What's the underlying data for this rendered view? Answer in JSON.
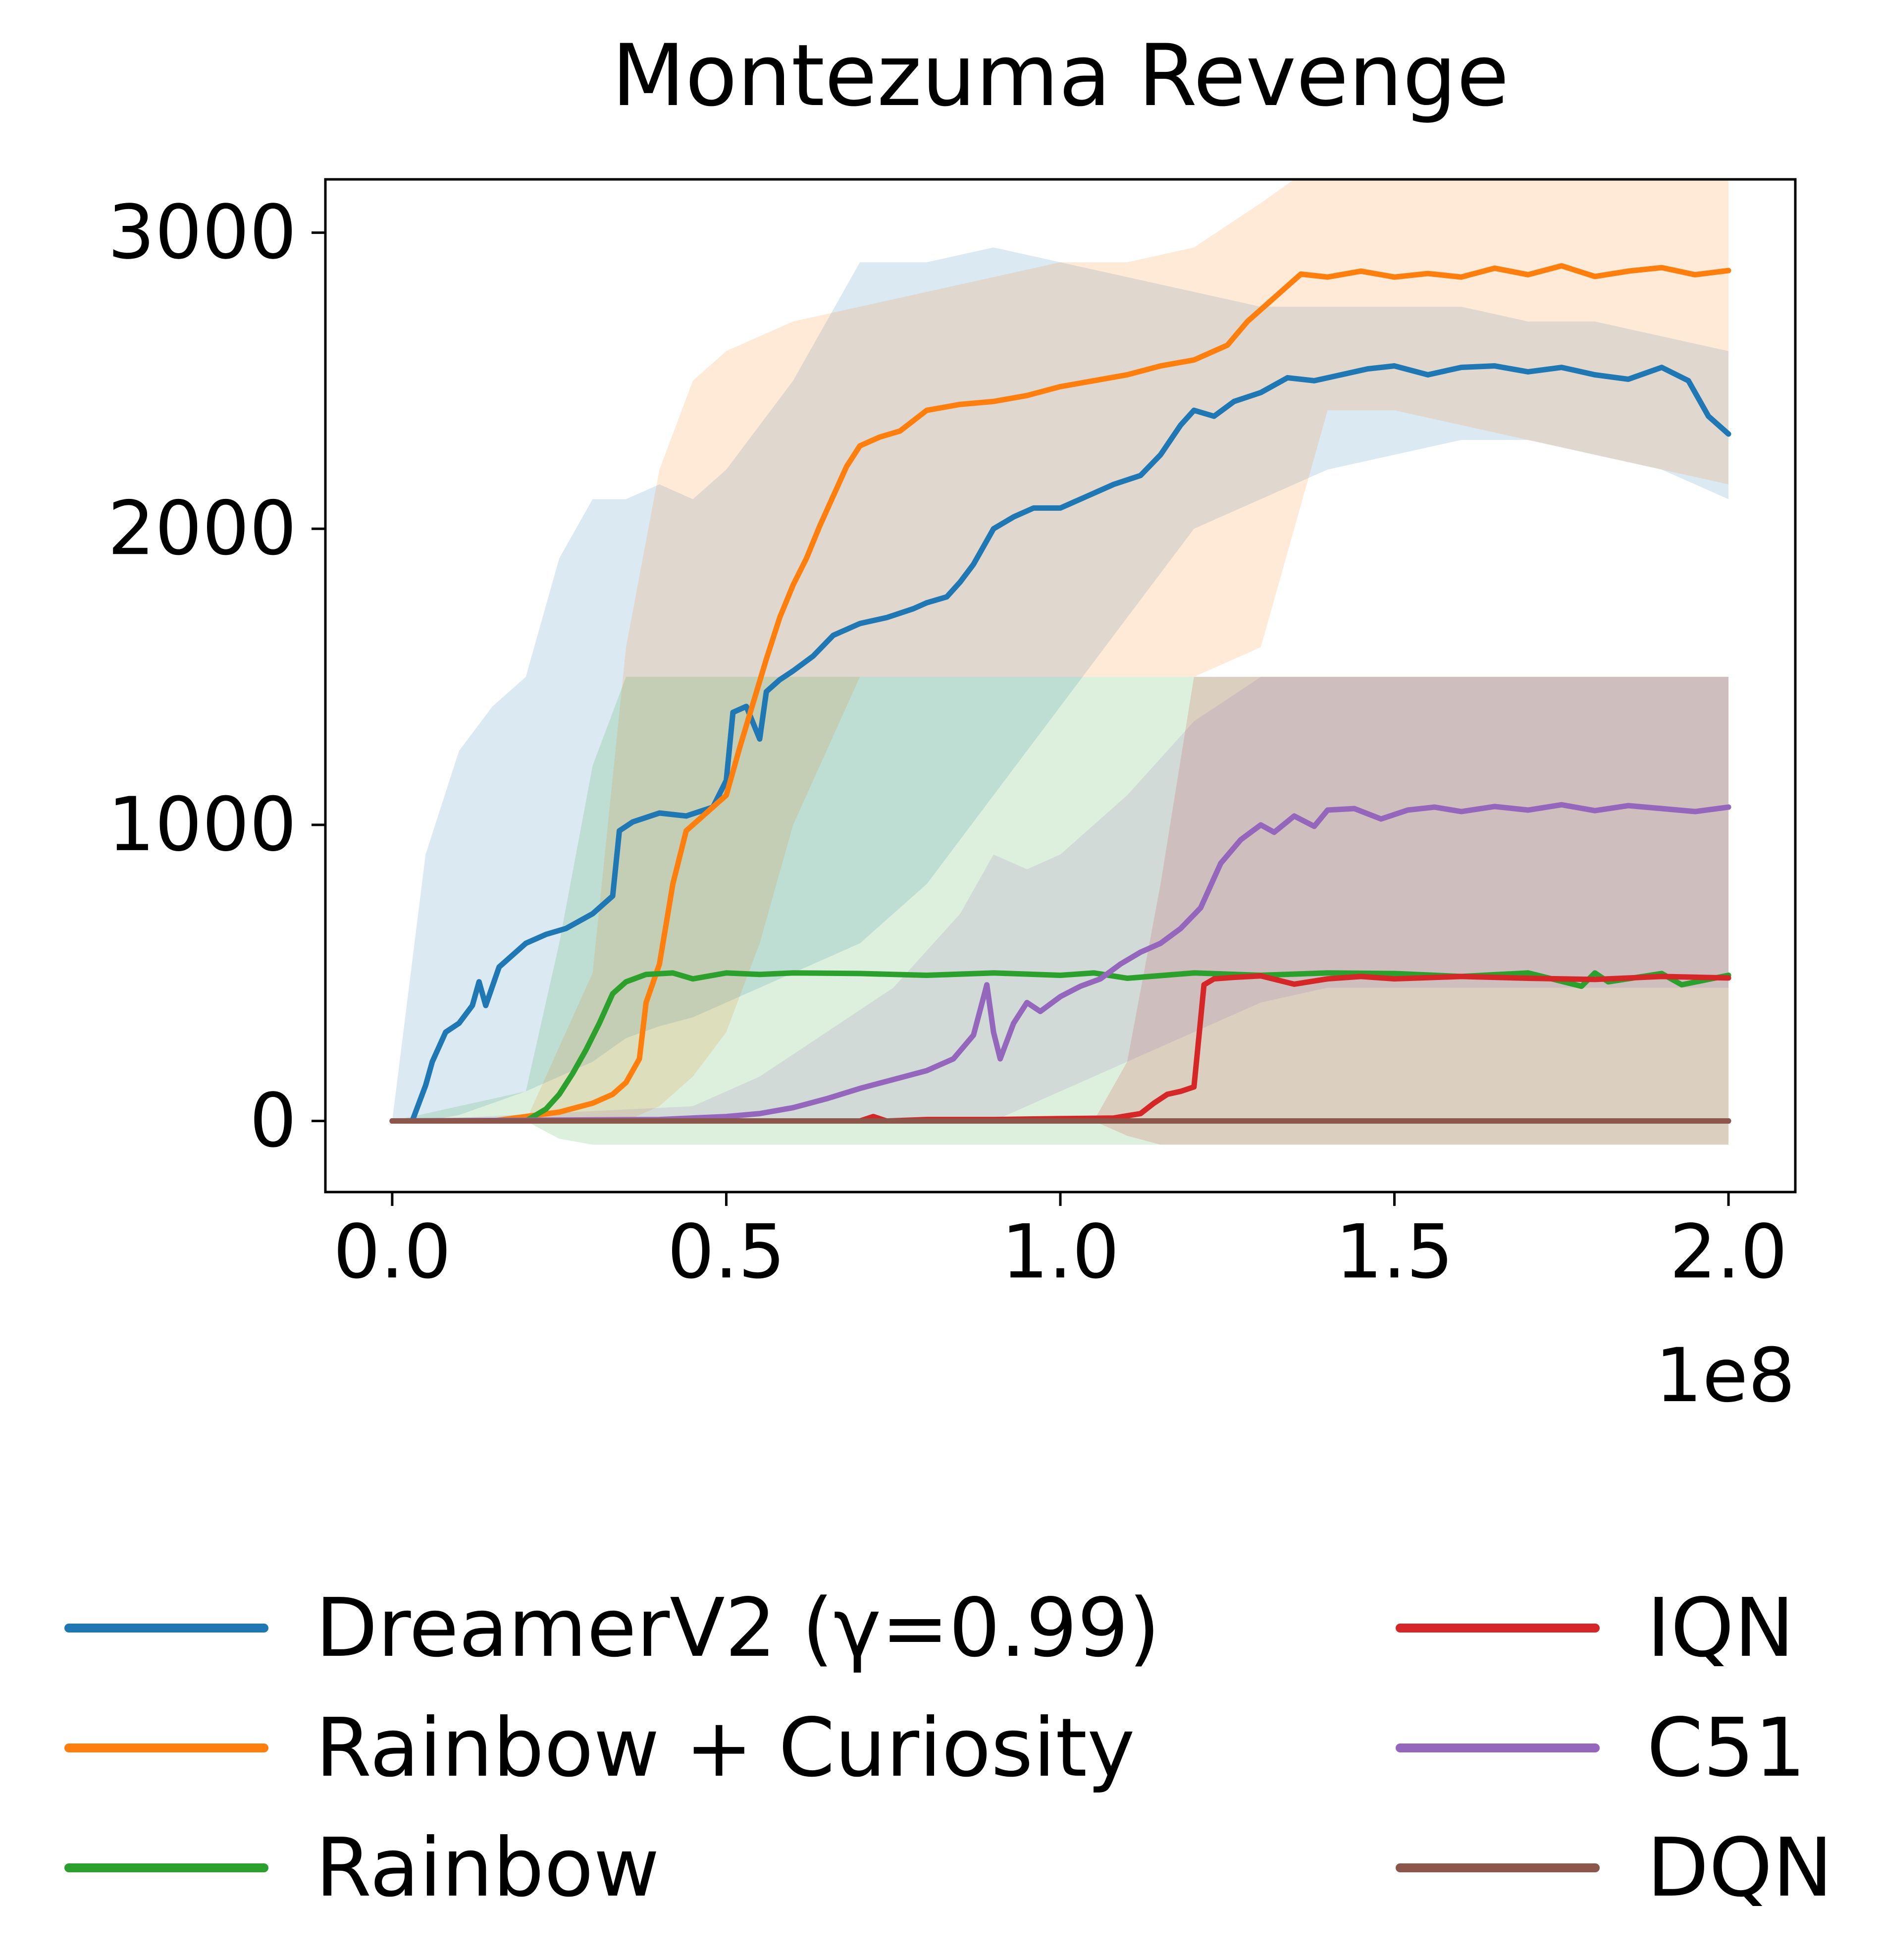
{
  "chart_data": {
    "type": "line",
    "title": "Montezuma Revenge",
    "xlabel": "",
    "ylabel": "",
    "x_offset_label": "1e8",
    "xlim": [
      -0.1,
      2.1
    ],
    "ylim": [
      -240,
      3180
    ],
    "grid": false,
    "legend_position": "below plot, two columns, no frame",
    "xticks": {
      "values": [
        0.0,
        0.5,
        1.0,
        1.5,
        2.0
      ],
      "labels": [
        "0.0",
        "0.5",
        "1.0",
        "1.5",
        "2.0"
      ]
    },
    "yticks": {
      "values": [
        0,
        1000,
        2000,
        3000
      ],
      "labels": [
        "0",
        "1000",
        "2000",
        "3000"
      ]
    },
    "series": [
      {
        "id": "dreamerv2",
        "name": "DreamerV2 (γ=0.99)",
        "color": "#1f77b4",
        "x": [
          0,
          0.03,
          0.05,
          0.06,
          0.08,
          0.1,
          0.12,
          0.13,
          0.14,
          0.16,
          0.18,
          0.2,
          0.23,
          0.26,
          0.3,
          0.33,
          0.34,
          0.36,
          0.4,
          0.44,
          0.48,
          0.5,
          0.51,
          0.53,
          0.55,
          0.56,
          0.58,
          0.6,
          0.63,
          0.66,
          0.7,
          0.74,
          0.78,
          0.8,
          0.83,
          0.85,
          0.87,
          0.9,
          0.93,
          0.96,
          1.0,
          1.04,
          1.08,
          1.12,
          1.15,
          1.18,
          1.2,
          1.23,
          1.26,
          1.3,
          1.34,
          1.38,
          1.42,
          1.46,
          1.5,
          1.55,
          1.6,
          1.65,
          1.7,
          1.75,
          1.8,
          1.85,
          1.9,
          1.94,
          1.97,
          2.0
        ],
        "y": [
          0,
          0,
          120,
          200,
          300,
          330,
          390,
          470,
          390,
          520,
          560,
          600,
          630,
          650,
          700,
          760,
          980,
          1010,
          1040,
          1030,
          1060,
          1150,
          1380,
          1400,
          1290,
          1450,
          1490,
          1520,
          1570,
          1640,
          1680,
          1700,
          1730,
          1750,
          1770,
          1820,
          1880,
          2000,
          2040,
          2070,
          2070,
          2110,
          2150,
          2180,
          2250,
          2350,
          2400,
          2380,
          2430,
          2460,
          2510,
          2500,
          2520,
          2540,
          2550,
          2520,
          2545,
          2550,
          2530,
          2545,
          2520,
          2505,
          2545,
          2500,
          2380,
          2320
        ],
        "band": {
          "x": [
            0,
            0.05,
            0.1,
            0.15,
            0.2,
            0.25,
            0.3,
            0.35,
            0.4,
            0.45,
            0.5,
            0.6,
            0.7,
            0.8,
            0.9,
            1.0,
            1.1,
            1.2,
            1.3,
            1.4,
            1.5,
            1.6,
            1.7,
            1.8,
            1.9,
            2.0
          ],
          "lo": [
            0,
            0,
            20,
            60,
            100,
            150,
            200,
            280,
            320,
            350,
            400,
            500,
            600,
            800,
            1100,
            1400,
            1700,
            2000,
            2100,
            2200,
            2250,
            2300,
            2300,
            2250,
            2200,
            2100
          ],
          "hi": [
            0,
            900,
            1250,
            1400,
            1500,
            1900,
            2100,
            2100,
            2150,
            2100,
            2200,
            2500,
            2900,
            2900,
            2950,
            2900,
            2850,
            2800,
            2750,
            2750,
            2750,
            2750,
            2700,
            2700,
            2650,
            2600
          ]
        }
      },
      {
        "id": "rainbow-curiosity",
        "name": "Rainbow + Curiosity",
        "color": "#ff7f0e",
        "x": [
          0,
          0.15,
          0.2,
          0.25,
          0.3,
          0.33,
          0.35,
          0.37,
          0.38,
          0.4,
          0.42,
          0.44,
          0.46,
          0.48,
          0.5,
          0.52,
          0.54,
          0.56,
          0.58,
          0.6,
          0.62,
          0.64,
          0.66,
          0.68,
          0.7,
          0.73,
          0.76,
          0.8,
          0.85,
          0.9,
          0.95,
          1.0,
          1.05,
          1.1,
          1.15,
          1.2,
          1.25,
          1.28,
          1.31,
          1.34,
          1.36,
          1.4,
          1.45,
          1.5,
          1.55,
          1.6,
          1.65,
          1.7,
          1.75,
          1.8,
          1.85,
          1.9,
          1.95,
          2.0
        ],
        "y": [
          0,
          0,
          15,
          30,
          60,
          90,
          130,
          210,
          400,
          530,
          800,
          980,
          1020,
          1060,
          1100,
          1260,
          1410,
          1560,
          1700,
          1810,
          1900,
          2010,
          2110,
          2210,
          2280,
          2310,
          2330,
          2400,
          2420,
          2430,
          2450,
          2480,
          2500,
          2520,
          2550,
          2570,
          2620,
          2700,
          2760,
          2820,
          2860,
          2850,
          2870,
          2850,
          2862,
          2850,
          2880,
          2858,
          2888,
          2852,
          2870,
          2882,
          2858,
          2872
        ],
        "band": {
          "x": [
            0,
            0.2,
            0.3,
            0.35,
            0.4,
            0.45,
            0.5,
            0.55,
            0.6,
            0.7,
            0.8,
            0.9,
            1.0,
            1.1,
            1.2,
            1.3,
            1.35,
            1.4,
            1.5,
            1.6,
            1.7,
            1.8,
            1.9,
            2.0
          ],
          "lo": [
            0,
            0,
            0,
            0,
            50,
            150,
            300,
            600,
            1000,
            1500,
            1500,
            1500,
            1500,
            1500,
            1500,
            1600,
            2000,
            2400,
            2400,
            2350,
            2300,
            2250,
            2200,
            2150
          ],
          "hi": [
            0,
            0,
            500,
            1600,
            2200,
            2500,
            2600,
            2650,
            2700,
            2750,
            2800,
            2850,
            2900,
            2900,
            2950,
            3100,
            3180,
            3180,
            3180,
            3180,
            3180,
            3180,
            3180,
            3180
          ]
        }
      },
      {
        "id": "rainbow",
        "name": "Rainbow",
        "color": "#2ca02c",
        "x": [
          0,
          0.2,
          0.23,
          0.25,
          0.27,
          0.29,
          0.31,
          0.33,
          0.35,
          0.38,
          0.42,
          0.45,
          0.5,
          0.55,
          0.6,
          0.7,
          0.8,
          0.9,
          1.0,
          1.05,
          1.1,
          1.2,
          1.3,
          1.4,
          1.5,
          1.6,
          1.7,
          1.78,
          1.8,
          1.82,
          1.9,
          1.93,
          2.0
        ],
        "y": [
          0,
          0,
          40,
          90,
          160,
          240,
          330,
          430,
          470,
          495,
          500,
          480,
          500,
          495,
          500,
          498,
          492,
          500,
          492,
          500,
          482,
          500,
          492,
          500,
          498,
          488,
          500,
          455,
          500,
          470,
          498,
          460,
          492
        ],
        "band": {
          "x": [
            0,
            0.2,
            0.25,
            0.3,
            0.35,
            0.4,
            0.5,
            1.0,
            1.5,
            2.0
          ],
          "lo": [
            0,
            0,
            -60,
            -80,
            -80,
            -80,
            -80,
            -80,
            -80,
            -80
          ],
          "hi": [
            0,
            100,
            600,
            1200,
            1500,
            1500,
            1500,
            1500,
            1500,
            1500
          ]
        }
      },
      {
        "id": "iqn",
        "name": "IQN",
        "color": "#d62728",
        "x": [
          0,
          0.6,
          0.7,
          0.72,
          0.74,
          0.8,
          0.9,
          1.0,
          1.08,
          1.12,
          1.14,
          1.16,
          1.18,
          1.2,
          1.215,
          1.23,
          1.26,
          1.3,
          1.35,
          1.4,
          1.45,
          1.5,
          1.6,
          1.7,
          1.8,
          1.9,
          2.0
        ],
        "y": [
          0,
          0,
          0,
          15,
          0,
          5,
          5,
          8,
          10,
          25,
          60,
          90,
          100,
          115,
          460,
          480,
          485,
          490,
          462,
          480,
          488,
          480,
          488,
          482,
          478,
          488,
          483
        ],
        "band": {
          "x": [
            0,
            1.05,
            1.1,
            1.15,
            1.2,
            1.3,
            1.5,
            2.0
          ],
          "lo": [
            0,
            0,
            -50,
            -80,
            -80,
            -80,
            -80,
            -80
          ],
          "hi": [
            0,
            0,
            200,
            800,
            1500,
            1500,
            1500,
            1500
          ]
        }
      },
      {
        "id": "c51",
        "name": "C51",
        "color": "#9467bd",
        "x": [
          0,
          0.4,
          0.5,
          0.55,
          0.6,
          0.65,
          0.7,
          0.75,
          0.8,
          0.84,
          0.87,
          0.89,
          0.9,
          0.91,
          0.93,
          0.95,
          0.97,
          1.0,
          1.03,
          1.06,
          1.09,
          1.12,
          1.15,
          1.18,
          1.21,
          1.24,
          1.27,
          1.3,
          1.32,
          1.35,
          1.38,
          1.4,
          1.44,
          1.48,
          1.52,
          1.56,
          1.6,
          1.65,
          1.7,
          1.75,
          1.8,
          1.85,
          1.9,
          1.95,
          2.0
        ],
        "y": [
          0,
          5,
          15,
          25,
          45,
          75,
          110,
          140,
          170,
          210,
          290,
          460,
          300,
          210,
          330,
          400,
          370,
          420,
          455,
          480,
          530,
          570,
          600,
          650,
          720,
          870,
          950,
          1000,
          975,
          1030,
          995,
          1050,
          1055,
          1020,
          1050,
          1060,
          1045,
          1062,
          1050,
          1068,
          1048,
          1065,
          1055,
          1045,
          1060
        ],
        "band": {
          "x": [
            0,
            0.45,
            0.55,
            0.65,
            0.75,
            0.85,
            0.9,
            0.95,
            1.0,
            1.1,
            1.2,
            1.3,
            1.4,
            1.6,
            1.8,
            2.0
          ],
          "lo": [
            0,
            0,
            0,
            0,
            0,
            0,
            0,
            50,
            100,
            200,
            300,
            400,
            450,
            450,
            450,
            450
          ],
          "hi": [
            0,
            50,
            150,
            300,
            450,
            700,
            900,
            850,
            900,
            1100,
            1350,
            1500,
            1500,
            1500,
            1500,
            1500
          ]
        }
      },
      {
        "id": "dqn",
        "name": "DQN",
        "color": "#8c564b",
        "x": [
          0,
          0.5,
          1.0,
          1.5,
          2.0
        ],
        "y": [
          0,
          0,
          0,
          0,
          0
        ]
      }
    ]
  }
}
